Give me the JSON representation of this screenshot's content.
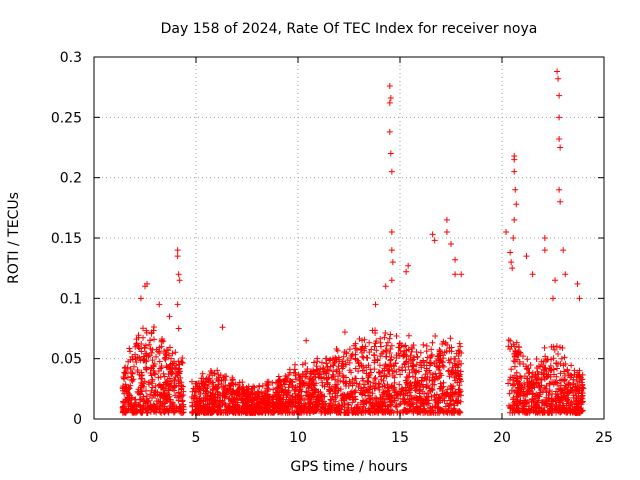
{
  "chart_data": {
    "type": "scatter",
    "title": "Day 158 of 2024, Rate Of TEC Index for receiver noya",
    "xlabel": "GPS time / hours",
    "ylabel": "ROTI / TECUs",
    "xlim": [
      0,
      25
    ],
    "ylim": [
      0,
      0.3
    ],
    "x_ticks": [
      0,
      5,
      10,
      15,
      20,
      25
    ],
    "y_ticks": [
      0,
      0.05,
      0.1,
      0.15,
      0.2,
      0.25,
      0.3
    ],
    "x_tick_labels": [
      "0",
      "5",
      "10",
      "15",
      "20",
      "25"
    ],
    "y_tick_labels": [
      "0",
      "0.05",
      "0.1",
      "0.15",
      "0.2",
      "0.25",
      "0.3"
    ],
    "grid": true,
    "marker": "+",
    "marker_color": "#ff0000",
    "dense_band": [
      {
        "x0": 1.4,
        "x1": 4.4,
        "y0": 0.005,
        "y1": [
          0.035,
          0.08,
          0.075,
          0.06,
          0.045
        ]
      },
      {
        "x0": 4.8,
        "x1": 18.0,
        "y0": 0.005,
        "y1": [
          0.03,
          0.04,
          0.03,
          0.025,
          0.035,
          0.045,
          0.05,
          0.06,
          0.07,
          0.065,
          0.06,
          0.065,
          0.06
        ]
      },
      {
        "x0": 20.3,
        "x1": 24.0,
        "y0": 0.005,
        "y1": [
          0.08,
          0.06,
          0.045,
          0.05,
          0.06,
          0.055,
          0.04,
          0.04
        ]
      }
    ],
    "series": [
      {
        "name": "ROTI",
        "x": [
          2.3,
          2.5,
          2.6,
          3.2,
          3.7,
          4.1,
          4.1,
          4.15,
          4.2,
          4.1,
          4.15,
          6.3,
          10.4,
          12.3,
          13.8,
          14.3,
          14.5,
          14.55,
          14.5,
          14.5,
          14.55,
          14.6,
          14.6,
          14.6,
          14.65,
          14.6,
          15.4,
          15.3,
          16.6,
          16.7,
          17.3,
          17.3,
          17.5,
          17.7,
          17.7,
          18.0,
          20.2,
          20.4,
          20.45,
          20.5,
          20.6,
          20.6,
          20.6,
          20.65,
          20.7,
          20.6,
          20.55,
          21.2,
          21.5,
          22.1,
          22.1,
          22.5,
          22.6,
          22.7,
          22.75,
          22.8,
          22.8,
          22.8,
          22.85,
          22.8,
          22.85,
          23.0,
          23.1,
          23.7,
          23.8
        ],
        "y": [
          0.1,
          0.11,
          0.112,
          0.095,
          0.085,
          0.14,
          0.135,
          0.12,
          0.115,
          0.095,
          0.075,
          0.076,
          0.065,
          0.072,
          0.095,
          0.11,
          0.276,
          0.266,
          0.262,
          0.238,
          0.22,
          0.205,
          0.155,
          0.14,
          0.13,
          0.115,
          0.127,
          0.122,
          0.153,
          0.148,
          0.165,
          0.155,
          0.145,
          0.132,
          0.12,
          0.12,
          0.155,
          0.138,
          0.13,
          0.125,
          0.218,
          0.215,
          0.205,
          0.19,
          0.178,
          0.165,
          0.15,
          0.135,
          0.12,
          0.15,
          0.14,
          0.1,
          0.115,
          0.288,
          0.282,
          0.268,
          0.25,
          0.232,
          0.225,
          0.19,
          0.18,
          0.14,
          0.12,
          0.112,
          0.1
        ]
      }
    ]
  }
}
